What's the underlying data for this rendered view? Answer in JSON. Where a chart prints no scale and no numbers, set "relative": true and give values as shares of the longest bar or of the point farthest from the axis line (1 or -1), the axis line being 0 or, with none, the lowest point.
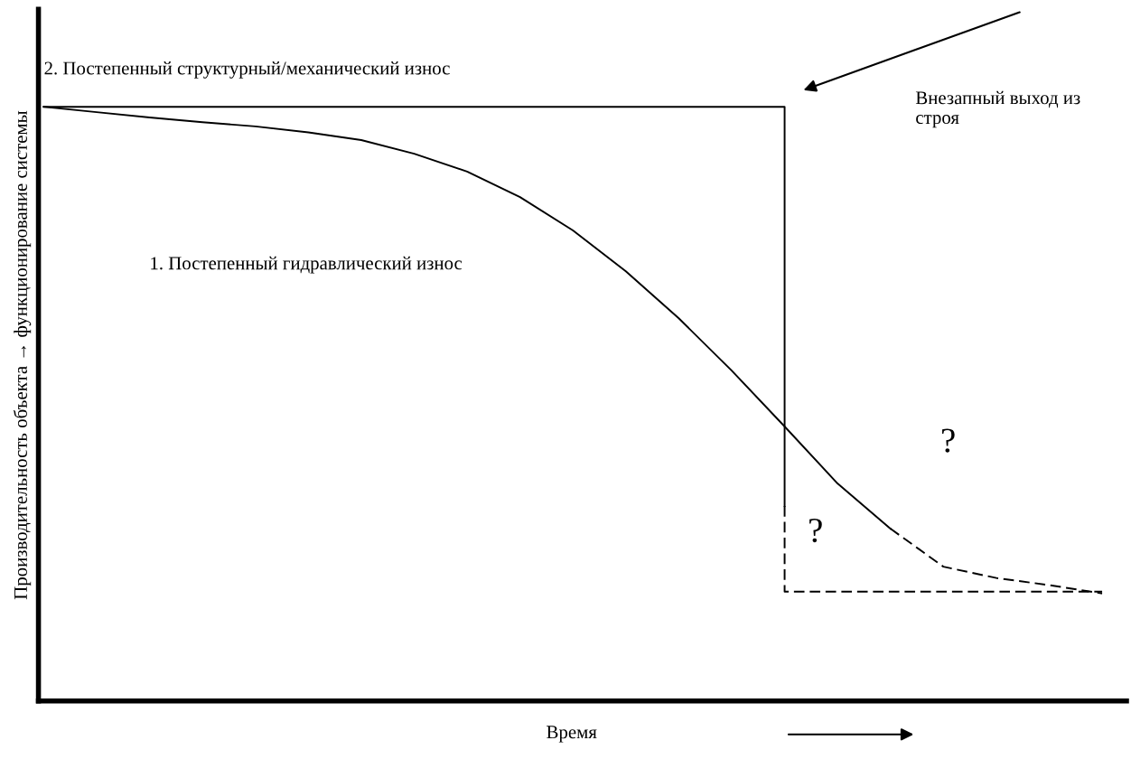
{
  "chart_data": {
    "type": "line",
    "relative": true,
    "xlabel": "Время",
    "ylabel": "Производительность объекта → функционирование системы",
    "categories": [
      null,
      null,
      null,
      null,
      null,
      null,
      null,
      null,
      null,
      null,
      null,
      null,
      null,
      null,
      null,
      null,
      null,
      null,
      null,
      null,
      null
    ],
    "series": [
      {
        "color": "#000000",
        "line_style": "solid",
        "values": [
          1.0,
          0.991,
          0.982,
          0.974,
          0.967,
          0.957,
          0.944,
          0.921,
          0.891,
          0.848,
          0.792,
          0.723,
          0.644,
          0.556,
          0.462,
          0.366,
          0.29,
          null,
          null,
          null,
          null
        ]
      },
      {
        "color": "#000000",
        "line_style": "dashed",
        "values": [
          null,
          null,
          null,
          null,
          null,
          null,
          null,
          null,
          null,
          null,
          null,
          null,
          null,
          null,
          null,
          null,
          0.29,
          0.226,
          0.207,
          0.195,
          0.181
        ]
      },
      {
        "type": "step",
        "color": "#000000",
        "line_style": "solid",
        "values": [
          1.0,
          1.0,
          1.0,
          1.0,
          1.0,
          1.0,
          1.0,
          1.0,
          1.0,
          1.0,
          1.0,
          1.0,
          1.0,
          1.0,
          0.328,
          null,
          null,
          null,
          null,
          null,
          null
        ]
      },
      {
        "type": "step",
        "color": "#000000",
        "line_style": "dashed",
        "values": [
          null,
          null,
          null,
          null,
          null,
          null,
          null,
          null,
          null,
          null,
          null,
          null,
          null,
          null,
          0.328,
          0.184,
          0.184,
          0.184,
          0.184,
          0.184,
          0.184
        ]
      }
    ],
    "annotations": [
      "2. Постепенный структурный/механический износ",
      "1. Постепенный гидравлический износ",
      "Внезапный выход из\nстроя",
      "?",
      "?"
    ]
  }
}
